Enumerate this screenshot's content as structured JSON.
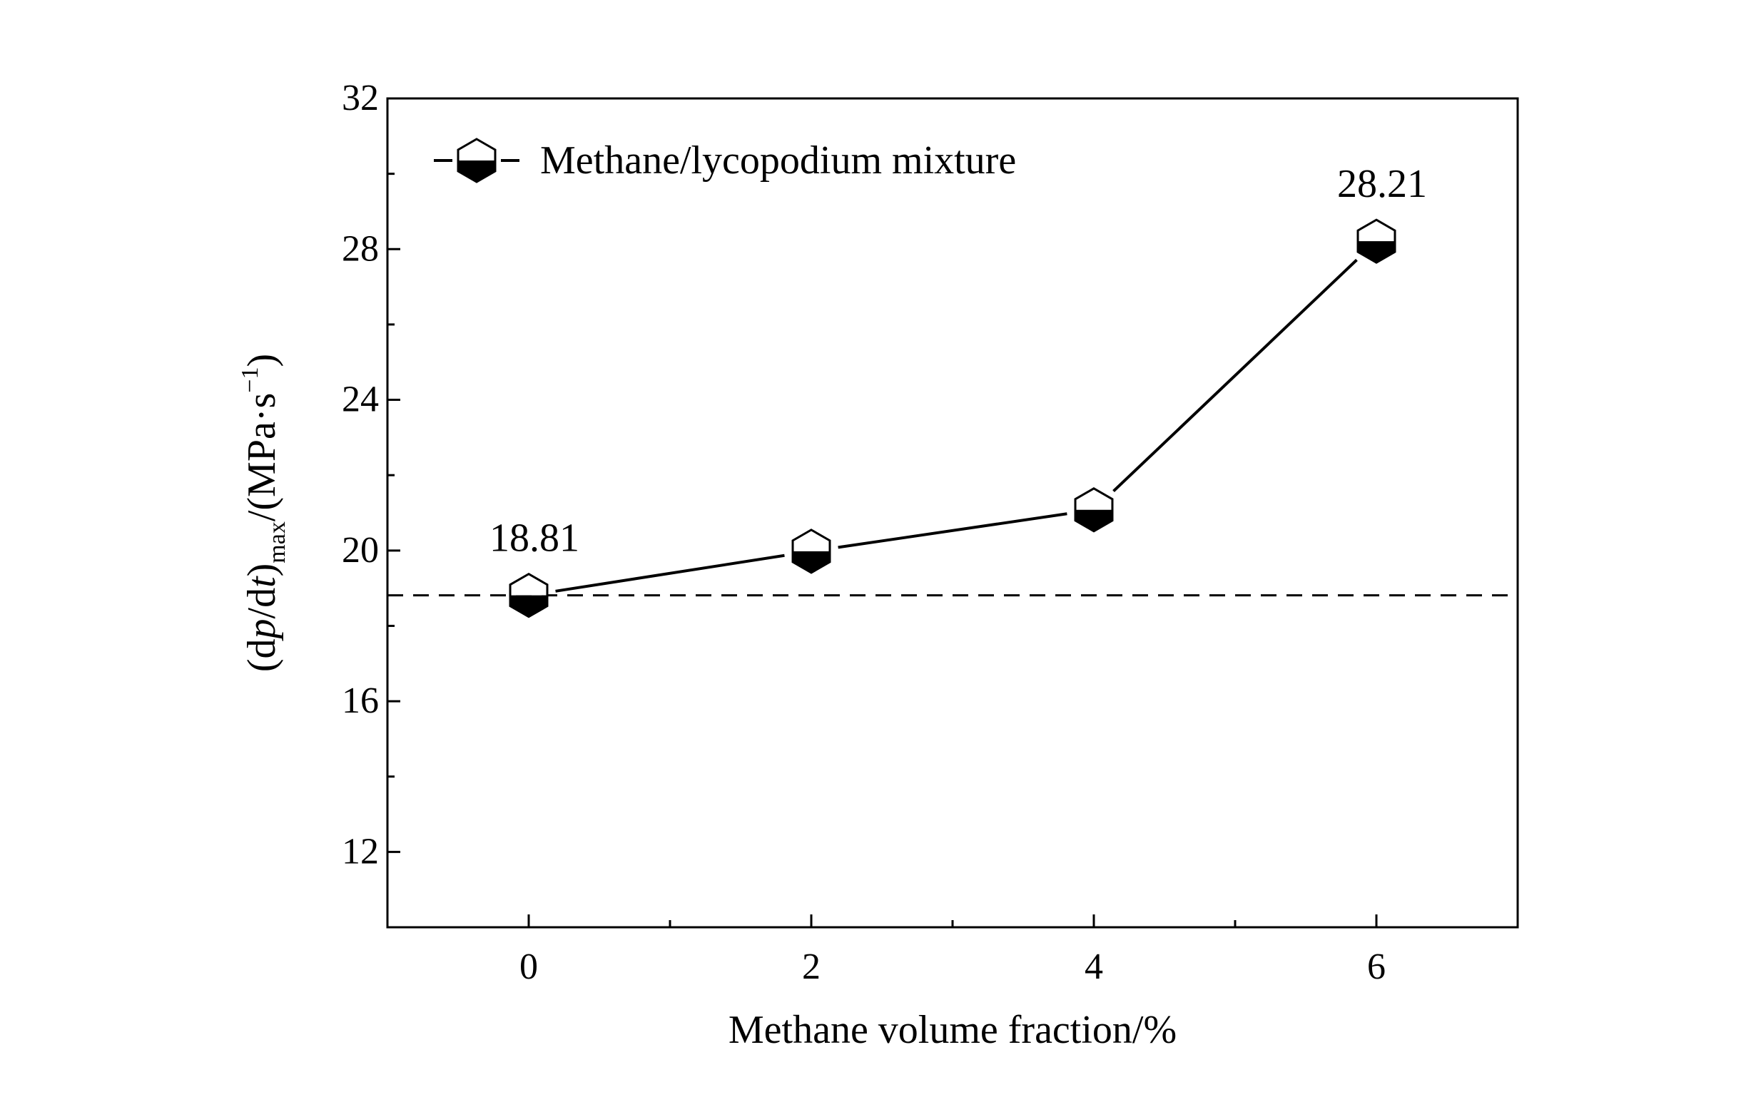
{
  "chart_data": {
    "type": "line",
    "x": [
      0,
      2,
      4,
      6
    ],
    "series": [
      {
        "name": "Methane/lycopodium mixture",
        "values": [
          18.81,
          19.98,
          21.08,
          28.21
        ],
        "color": "#000000",
        "marker": "half-filled-hexagon"
      }
    ],
    "data_labels": [
      {
        "x": 0,
        "y": 18.81,
        "text": "18.81"
      },
      {
        "x": 6,
        "y": 28.21,
        "text": "28.21"
      }
    ],
    "reference_line": {
      "y": 18.81,
      "style": "dashed"
    },
    "xlabel": "Methane volume fraction/%",
    "ylabel": "(dp/dt)max/(MPa·s⁻¹)",
    "xlim": [
      -1,
      7
    ],
    "ylim": [
      10,
      32
    ],
    "xticks": [
      0,
      2,
      4,
      6
    ],
    "xticks_minor": [
      1,
      3,
      5
    ],
    "yticks": [
      12,
      16,
      20,
      24,
      28,
      32
    ],
    "yticks_minor": [
      14,
      18,
      22,
      26,
      30
    ],
    "grid": false,
    "legend_position": "top-left"
  }
}
